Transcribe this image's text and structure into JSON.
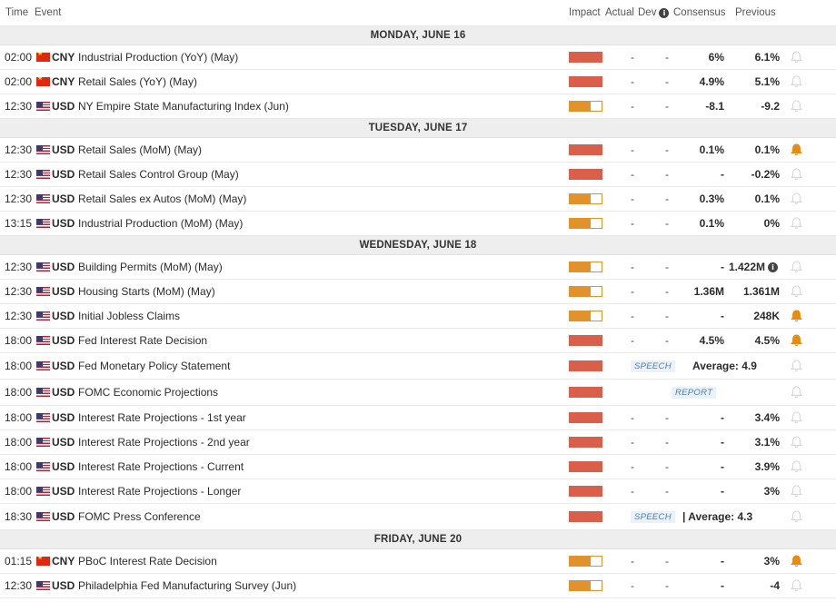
{
  "header": {
    "time": "Time",
    "event": "Event",
    "impact": "Impact",
    "actual": "Actual",
    "dev": "Dev",
    "dev_info_icon": "info-icon",
    "consensus": "Consensus",
    "previous": "Previous"
  },
  "colors": {
    "high_impact": "#d95f4b",
    "medium_impact": "#e2922a",
    "bell_active": "#e88b12",
    "bell_inactive": "#d6d6d6",
    "day_background": "#eeeeee",
    "tag_text": "#4a7fb5"
  },
  "days": [
    {
      "label": "MONDAY, JUNE 16",
      "events": [
        {
          "time": "02:00",
          "currency": "CNY",
          "flag": "cn-flag",
          "name": "Industrial Production (YoY) (May)",
          "impact": "high",
          "impact_level": 1.0,
          "actual": "-",
          "dev": "-",
          "consensus": "6%",
          "previous": "6.1%",
          "alert": false
        },
        {
          "time": "02:00",
          "currency": "CNY",
          "flag": "cn-flag",
          "name": "Retail Sales (YoY) (May)",
          "impact": "high",
          "impact_level": 1.0,
          "actual": "-",
          "dev": "-",
          "consensus": "4.9%",
          "previous": "5.1%",
          "alert": false
        },
        {
          "time": "12:30",
          "currency": "USD",
          "flag": "us-flag",
          "name": "NY Empire State Manufacturing Index (Jun)",
          "impact": "medium",
          "impact_level": 0.66,
          "actual": "-",
          "dev": "-",
          "consensus": "-8.1",
          "previous": "-9.2",
          "alert": false
        }
      ]
    },
    {
      "label": "TUESDAY, JUNE 17",
      "events": [
        {
          "time": "12:30",
          "currency": "USD",
          "flag": "us-flag",
          "name": "Retail Sales (MoM) (May)",
          "impact": "high",
          "impact_level": 1.0,
          "actual": "-",
          "dev": "-",
          "consensus": "0.1%",
          "previous": "0.1%",
          "alert": true
        },
        {
          "time": "12:30",
          "currency": "USD",
          "flag": "us-flag",
          "name": "Retail Sales Control Group (May)",
          "impact": "high",
          "impact_level": 1.0,
          "actual": "-",
          "dev": "-",
          "consensus": "-",
          "previous": "-0.2%",
          "alert": false
        },
        {
          "time": "12:30",
          "currency": "USD",
          "flag": "us-flag",
          "name": "Retail Sales ex Autos (MoM) (May)",
          "impact": "medium",
          "impact_level": 0.66,
          "actual": "-",
          "dev": "-",
          "consensus": "0.3%",
          "previous": "0.1%",
          "alert": false
        },
        {
          "time": "13:15",
          "currency": "USD",
          "flag": "us-flag",
          "name": "Industrial Production (MoM) (May)",
          "impact": "medium",
          "impact_level": 0.66,
          "actual": "-",
          "dev": "-",
          "consensus": "0.1%",
          "previous": "0%",
          "alert": false
        }
      ]
    },
    {
      "label": "WEDNESDAY, JUNE 18",
      "events": [
        {
          "time": "12:30",
          "currency": "USD",
          "flag": "us-flag",
          "name": "Building Permits (MoM) (May)",
          "impact": "medium",
          "impact_level": 0.66,
          "actual": "-",
          "dev": "-",
          "consensus": "-",
          "previous": "1.422M",
          "previous_info": true,
          "alert": false
        },
        {
          "time": "12:30",
          "currency": "USD",
          "flag": "us-flag",
          "name": "Housing Starts (MoM) (May)",
          "impact": "medium",
          "impact_level": 0.66,
          "actual": "-",
          "dev": "-",
          "consensus": "1.36M",
          "previous": "1.361M",
          "alert": false
        },
        {
          "time": "12:30",
          "currency": "USD",
          "flag": "us-flag",
          "name": "Initial Jobless Claims",
          "impact": "medium",
          "impact_level": 0.66,
          "actual": "-",
          "dev": "-",
          "consensus": "-",
          "previous": "248K",
          "alert": true
        },
        {
          "time": "18:00",
          "currency": "USD",
          "flag": "us-flag",
          "name": "Fed Interest Rate Decision",
          "impact": "high",
          "impact_level": 1.0,
          "actual": "-",
          "dev": "-",
          "consensus": "4.5%",
          "previous": "4.5%",
          "alert": true
        },
        {
          "time": "18:00",
          "currency": "USD",
          "flag": "us-flag",
          "name": "Fed Monetary Policy Statement",
          "impact": "high",
          "impact_level": 1.0,
          "tag": "SPEECH",
          "average": "Average: 4.9",
          "alert": false
        },
        {
          "time": "18:00",
          "currency": "USD",
          "flag": "us-flag",
          "name": "FOMC Economic Projections",
          "impact": "high",
          "impact_level": 1.0,
          "tag": "REPORT",
          "alert": false
        },
        {
          "time": "18:00",
          "currency": "USD",
          "flag": "us-flag",
          "name": "Interest Rate Projections - 1st year",
          "impact": "high",
          "impact_level": 1.0,
          "actual": "-",
          "dev": "-",
          "consensus": "-",
          "previous": "3.4%",
          "alert": false
        },
        {
          "time": "18:00",
          "currency": "USD",
          "flag": "us-flag",
          "name": "Interest Rate Projections - 2nd year",
          "impact": "high",
          "impact_level": 1.0,
          "actual": "-",
          "dev": "-",
          "consensus": "-",
          "previous": "3.1%",
          "alert": false
        },
        {
          "time": "18:00",
          "currency": "USD",
          "flag": "us-flag",
          "name": "Interest Rate Projections - Current",
          "impact": "high",
          "impact_level": 1.0,
          "actual": "-",
          "dev": "-",
          "consensus": "-",
          "previous": "3.9%",
          "alert": false
        },
        {
          "time": "18:00",
          "currency": "USD",
          "flag": "us-flag",
          "name": "Interest Rate Projections - Longer",
          "impact": "high",
          "impact_level": 1.0,
          "actual": "-",
          "dev": "-",
          "consensus": "-",
          "previous": "3%",
          "alert": false
        },
        {
          "time": "18:30",
          "currency": "USD",
          "flag": "us-flag",
          "name": "FOMC Press Conference",
          "impact": "high",
          "impact_level": 1.0,
          "tag": "SPEECH",
          "average": "|  Average: 4.3",
          "alert": false
        }
      ]
    },
    {
      "label": "FRIDAY, JUNE 20",
      "events": [
        {
          "time": "01:15",
          "currency": "CNY",
          "flag": "cn-flag",
          "name": "PBoC Interest Rate Decision",
          "impact": "medium",
          "impact_level": 0.66,
          "actual": "-",
          "dev": "-",
          "consensus": "-",
          "previous": "3%",
          "alert": true
        },
        {
          "time": "12:30",
          "currency": "USD",
          "flag": "us-flag",
          "name": "Philadelphia Fed Manufacturing Survey (Jun)",
          "impact": "medium",
          "impact_level": 0.66,
          "actual": "-",
          "dev": "-",
          "consensus": "-",
          "previous": "-4",
          "alert": false
        }
      ]
    }
  ]
}
